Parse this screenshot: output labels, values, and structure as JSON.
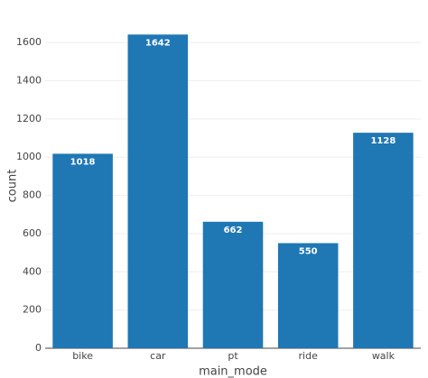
{
  "chart_data": {
    "type": "bar",
    "xlabel": "main_mode",
    "ylabel": "count",
    "categories": [
      "bike",
      "car",
      "pt",
      "ride",
      "walk"
    ],
    "values": [
      1018,
      1642,
      662,
      550,
      1128
    ],
    "color": "#1f77b4",
    "ylim": [
      0,
      1700
    ],
    "yticks": [
      0,
      200,
      400,
      600,
      800,
      1000,
      1200,
      1400,
      1600
    ],
    "grid": true
  }
}
